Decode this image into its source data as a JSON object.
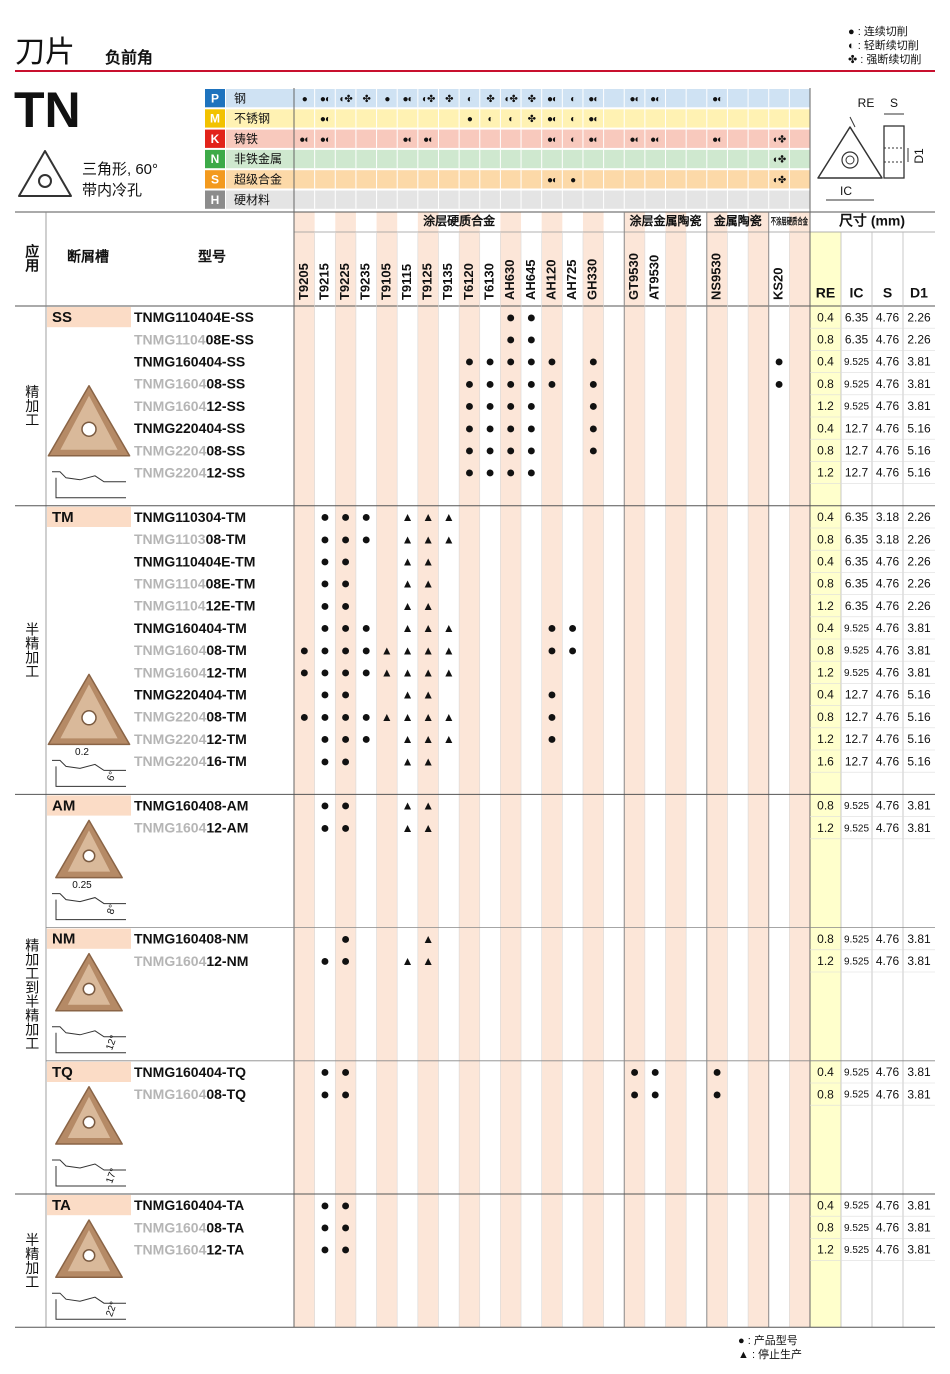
{
  "header": {
    "title": "刀片",
    "subtitle": "负前角",
    "legend": [
      "● : 连续切削",
      "◐ : 轻断续切削",
      "✤ : 强断续切削"
    ]
  },
  "insert": {
    "code": "TN",
    "shape": "三角形, 60°",
    "feature": "带内冷孔"
  },
  "diagram_labels": {
    "re": "RE",
    "s": "S",
    "d1": "D1",
    "ic": "IC"
  },
  "materials": [
    {
      "letter": "P",
      "name": "钢",
      "letter_color": "#1e73be",
      "color": "#cfe2f3",
      "marks": {
        "T9205": "●",
        "T9215": "●◐",
        "T9225": "◐✤",
        "T9235": "✤",
        "T9105": "●",
        "T9115": "●◐",
        "T9125": "◐✤",
        "T9135": "✤",
        "T6120": "◐",
        "T6130": "✤",
        "AH630": "◐✤",
        "AH645": "✤",
        "AH120": "●◐",
        "AH725": "◐",
        "GH330": "●◐",
        "GT9530": "●◐",
        "AT9530": "●◐",
        "NS9530": "●◐"
      }
    },
    {
      "letter": "M",
      "name": "不锈钢",
      "letter_color": "#f2c200",
      "color": "#fff2b3",
      "marks": {
        "T9215": "●◐",
        "T6120": "●",
        "T6130": "◐",
        "AH630": "◐",
        "AH645": "✤",
        "AH120": "●◐",
        "AH725": "◐",
        "GH330": "●◐"
      }
    },
    {
      "letter": "K",
      "name": "铸铁",
      "letter_color": "#e2231a",
      "color": "#f8c9bd",
      "marks": {
        "T9205": "●◐",
        "T9215": "●◐",
        "T9115": "●◐",
        "T9125": "●◐",
        "AH120": "●◐",
        "AH725": "◐",
        "GH330": "●◐",
        "GT9530": "●◐",
        "AT9530": "●◐",
        "NS9530": "●◐",
        "KS20": "◐✤"
      }
    },
    {
      "letter": "N",
      "name": "非铁金属",
      "letter_color": "#3daa48",
      "color": "#cfe8cf",
      "marks": {
        "KS20": "◐✤"
      }
    },
    {
      "letter": "S",
      "name": "超级合金",
      "letter_color": "#f39a1e",
      "color": "#fcd9a8",
      "marks": {
        "AH120": "●◐",
        "AH725": "●",
        "KS20": "◐✤"
      }
    },
    {
      "letter": "H",
      "name": "硬材料",
      "letter_color": "#8c8c8c",
      "color": "#e4e4e4",
      "marks": {}
    }
  ],
  "table_header": {
    "application": "应用",
    "breaker": "断屑槽",
    "model": "型号"
  },
  "grade_groups": [
    {
      "name": "涂层硬质合金",
      "grades": [
        "T9205",
        "T9215",
        "T9225",
        "T9235",
        "T9105",
        "T9115",
        "T9125",
        "T9135",
        "T6120",
        "T6130",
        "AH630",
        "AH645",
        "AH120",
        "AH725",
        "GH330",
        null
      ]
    },
    {
      "name": "涂层金属陶瓷",
      "grades": [
        "GT9530",
        "AT9530",
        null,
        null
      ]
    },
    {
      "name": "金属陶瓷",
      "grades": [
        "NS9530",
        null,
        null
      ]
    },
    {
      "name": "不涂层硬质合金",
      "grades": [
        "KS20",
        null
      ]
    }
  ],
  "dimension_header": {
    "title": "尺寸 (mm)",
    "columns": [
      "RE",
      "IC",
      "S",
      "D1"
    ]
  },
  "sections": [
    {
      "application": "精加工",
      "groups": [
        {
          "breaker": "SS",
          "labels": [],
          "rows": [
            {
              "code": [
                "TNMG110404E-SS"
              ],
              "marks": {
                "AH630": "●",
                "AH645": "●"
              },
              "dims": [
                0.4,
                6.35,
                4.76,
                2.26
              ]
            },
            {
              "code": [
                "TNMG1104",
                "08E-SS"
              ],
              "marks": {
                "AH630": "●",
                "AH645": "●"
              },
              "dims": [
                0.8,
                6.35,
                4.76,
                2.26
              ]
            },
            {
              "code": [
                "TNMG160404-SS"
              ],
              "marks": {
                "T6120": "●",
                "T6130": "●",
                "AH630": "●",
                "AH645": "●",
                "AH120": "●",
                "GH330": "●",
                "KS20": "●"
              },
              "dims": [
                0.4,
                9.525,
                4.76,
                3.81
              ]
            },
            {
              "code": [
                "TNMG1604",
                "08-SS"
              ],
              "marks": {
                "T6120": "●",
                "T6130": "●",
                "AH630": "●",
                "AH645": "●",
                "AH120": "●",
                "GH330": "●",
                "KS20": "●"
              },
              "dims": [
                0.8,
                9.525,
                4.76,
                3.81
              ]
            },
            {
              "code": [
                "TNMG1604",
                "12-SS"
              ],
              "marks": {
                "T6120": "●",
                "T6130": "●",
                "AH630": "●",
                "AH645": "●",
                "GH330": "●"
              },
              "dims": [
                1.2,
                9.525,
                4.76,
                3.81
              ]
            },
            {
              "code": [
                "TNMG220404-SS"
              ],
              "marks": {
                "T6120": "●",
                "T6130": "●",
                "AH630": "●",
                "AH645": "●",
                "GH330": "●"
              },
              "dims": [
                0.4,
                12.7,
                4.76,
                5.16
              ]
            },
            {
              "code": [
                "TNMG2204",
                "08-SS"
              ],
              "marks": {
                "T6120": "●",
                "T6130": "●",
                "AH630": "●",
                "AH645": "●",
                "GH330": "●"
              },
              "dims": [
                0.8,
                12.7,
                4.76,
                5.16
              ]
            },
            {
              "code": [
                "TNMG2204",
                "12-SS"
              ],
              "marks": {
                "T6120": "●",
                "T6130": "●",
                "AH630": "●",
                "AH645": "●"
              },
              "dims": [
                1.2,
                12.7,
                4.76,
                5.16
              ]
            }
          ]
        }
      ]
    },
    {
      "application": "半精加工",
      "groups": [
        {
          "breaker": "TM",
          "labels": [
            "0.2",
            "6°"
          ],
          "rows": [
            {
              "code": [
                "TNMG110304-TM"
              ],
              "marks": {
                "T9215": "●",
                "T9225": "●",
                "T9235": "●",
                "T9115": "▲",
                "T9125": "▲",
                "T9135": "▲"
              },
              "dims": [
                0.4,
                6.35,
                3.18,
                2.26
              ]
            },
            {
              "code": [
                "TNMG1103",
                "08-TM"
              ],
              "marks": {
                "T9215": "●",
                "T9225": "●",
                "T9235": "●",
                "T9115": "▲",
                "T9125": "▲",
                "T9135": "▲"
              },
              "dims": [
                0.8,
                6.35,
                3.18,
                2.26
              ]
            },
            {
              "code": [
                "TNMG110404E-TM"
              ],
              "marks": {
                "T9215": "●",
                "T9225": "●",
                "T9115": "▲",
                "T9125": "▲"
              },
              "dims": [
                0.4,
                6.35,
                4.76,
                2.26
              ]
            },
            {
              "code": [
                "TNMG1104",
                "08E-TM"
              ],
              "marks": {
                "T9215": "●",
                "T9225": "●",
                "T9115": "▲",
                "T9125": "▲"
              },
              "dims": [
                0.8,
                6.35,
                4.76,
                2.26
              ]
            },
            {
              "code": [
                "TNMG1104",
                "12E-TM"
              ],
              "marks": {
                "T9215": "●",
                "T9225": "●",
                "T9115": "▲",
                "T9125": "▲"
              },
              "dims": [
                1.2,
                6.35,
                4.76,
                2.26
              ]
            },
            {
              "code": [
                "TNMG160404-TM"
              ],
              "marks": {
                "T9215": "●",
                "T9225": "●",
                "T9235": "●",
                "T9115": "▲",
                "T9125": "▲",
                "T9135": "▲",
                "AH120": "●",
                "AH725": "●"
              },
              "dims": [
                0.4,
                9.525,
                4.76,
                3.81
              ]
            },
            {
              "code": [
                "TNMG1604",
                "08-TM"
              ],
              "marks": {
                "T9205": "●",
                "T9215": "●",
                "T9225": "●",
                "T9235": "●",
                "T9105": "▲",
                "T9115": "▲",
                "T9125": "▲",
                "T9135": "▲",
                "AH120": "●",
                "AH725": "●"
              },
              "dims": [
                0.8,
                9.525,
                4.76,
                3.81
              ]
            },
            {
              "code": [
                "TNMG1604",
                "12-TM"
              ],
              "marks": {
                "T9205": "●",
                "T9215": "●",
                "T9225": "●",
                "T9235": "●",
                "T9105": "▲",
                "T9115": "▲",
                "T9125": "▲",
                "T9135": "▲"
              },
              "dims": [
                1.2,
                9.525,
                4.76,
                3.81
              ]
            },
            {
              "code": [
                "TNMG220404-TM"
              ],
              "marks": {
                "T9215": "●",
                "T9225": "●",
                "T9115": "▲",
                "T9125": "▲",
                "AH120": "●"
              },
              "dims": [
                0.4,
                12.7,
                4.76,
                5.16
              ]
            },
            {
              "code": [
                "TNMG2204",
                "08-TM"
              ],
              "marks": {
                "T9205": "●",
                "T9215": "●",
                "T9225": "●",
                "T9235": "●",
                "T9105": "▲",
                "T9115": "▲",
                "T9125": "▲",
                "T9135": "▲",
                "AH120": "●"
              },
              "dims": [
                0.8,
                12.7,
                4.76,
                5.16
              ]
            },
            {
              "code": [
                "TNMG2204",
                "12-TM"
              ],
              "marks": {
                "T9215": "●",
                "T9225": "●",
                "T9235": "●",
                "T9115": "▲",
                "T9125": "▲",
                "T9135": "▲",
                "AH120": "●"
              },
              "dims": [
                1.2,
                12.7,
                4.76,
                5.16
              ]
            },
            {
              "code": [
                "TNMG2204",
                "16-TM"
              ],
              "marks": {
                "T9215": "●",
                "T9225": "●",
                "T9115": "▲",
                "T9125": "▲"
              },
              "dims": [
                1.6,
                12.7,
                4.76,
                5.16
              ]
            }
          ]
        }
      ]
    },
    {
      "application": "精加工到半精加工",
      "groups": [
        {
          "breaker": "AM",
          "labels": [
            "0.25",
            "8°"
          ],
          "rows": [
            {
              "code": [
                "TNMG160408-AM"
              ],
              "marks": {
                "T9215": "●",
                "T9225": "●",
                "T9115": "▲",
                "T9125": "▲"
              },
              "dims": [
                0.8,
                9.525,
                4.76,
                3.81
              ]
            },
            {
              "code": [
                "TNMG1604",
                "12-AM"
              ],
              "marks": {
                "T9215": "●",
                "T9225": "●",
                "T9115": "▲",
                "T9125": "▲"
              },
              "dims": [
                1.2,
                9.525,
                4.76,
                3.81
              ]
            }
          ]
        },
        {
          "breaker": "NM",
          "labels": [
            "12°"
          ],
          "rows": [
            {
              "code": [
                "TNMG160408-NM"
              ],
              "marks": {
                "T9225": "●",
                "T9125": "▲"
              },
              "dims": [
                0.8,
                9.525,
                4.76,
                3.81
              ]
            },
            {
              "code": [
                "TNMG1604",
                "12-NM"
              ],
              "marks": {
                "T9215": "●",
                "T9225": "●",
                "T9115": "▲",
                "T9125": "▲"
              },
              "dims": [
                1.2,
                9.525,
                4.76,
                3.81
              ]
            }
          ]
        },
        {
          "breaker": "TQ",
          "labels": [
            "17°"
          ],
          "rows": [
            {
              "code": [
                "TNMG160404-TQ"
              ],
              "marks": {
                "T9215": "●",
                "T9225": "●",
                "GT9530": "●",
                "AT9530": "●",
                "NS9530": "●"
              },
              "dims": [
                0.4,
                9.525,
                4.76,
                3.81
              ]
            },
            {
              "code": [
                "TNMG1604",
                "08-TQ"
              ],
              "marks": {
                "T9215": "●",
                "T9225": "●",
                "GT9530": "●",
                "AT9530": "●",
                "NS9530": "●"
              },
              "dims": [
                0.8,
                9.525,
                4.76,
                3.81
              ]
            }
          ]
        }
      ]
    },
    {
      "application": "半精加工",
      "groups": [
        {
          "breaker": "TA",
          "labels": [
            "22°"
          ],
          "rows": [
            {
              "code": [
                "TNMG160404-TA"
              ],
              "marks": {
                "T9215": "●",
                "T9225": "●"
              },
              "dims": [
                0.4,
                9.525,
                4.76,
                3.81
              ]
            },
            {
              "code": [
                "TNMG1604",
                "08-TA"
              ],
              "marks": {
                "T9215": "●",
                "T9225": "●"
              },
              "dims": [
                0.8,
                9.525,
                4.76,
                3.81
              ]
            },
            {
              "code": [
                "TNMG1604",
                "12-TA"
              ],
              "marks": {
                "T9215": "●",
                "T9225": "●"
              },
              "dims": [
                1.2,
                9.525,
                4.76,
                3.81
              ]
            }
          ]
        }
      ]
    }
  ],
  "footer": {
    "legend": [
      "● : 产品型号",
      "▲ : 停止生产"
    ]
  }
}
